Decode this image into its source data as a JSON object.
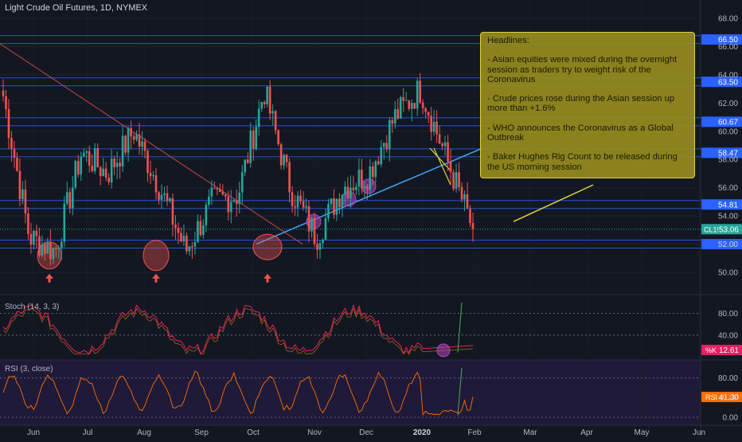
{
  "chart_title": "Light Crude Oil Futures, 1D, NYMEX",
  "price_axis": {
    "ticks": [
      "68.00",
      "66.00",
      "64.00",
      "62.00",
      "60.00",
      "58.00",
      "56.00",
      "54.00",
      "52.00",
      "50.00"
    ],
    "level_tags": [
      {
        "label": "66.50",
        "color": "#2962ff"
      },
      {
        "label": "63.50",
        "color": "#2962ff"
      },
      {
        "label": "60.67",
        "color": "#2962ff"
      },
      {
        "label": "58.47",
        "color": "#2962ff"
      },
      {
        "label": "54.81",
        "color": "#2962ff"
      },
      {
        "label": "52.00",
        "color": "#2962ff"
      }
    ],
    "current_tag": {
      "symbol": "CL1!",
      "price": "53.06",
      "color": "#26a69a"
    }
  },
  "x_axis_labels": [
    "Jun",
    "Jul",
    "Aug",
    "Sep",
    "Oct",
    "Nov",
    "Dec",
    "2020",
    "Feb",
    "Mar",
    "Apr",
    "May",
    "Jun"
  ],
  "headlines": {
    "title": "Headlines:",
    "items": [
      "- Asian equities were mixed during the overnight session as traders try to weight risk of the Coronavirus",
      "- Crude prices rose during the Asian session up more than +1.6%",
      "- WHO announces the Coronavirus as a Global Outbreak",
      "- Baker Hughes Rig Count to be released during the US morning session"
    ]
  },
  "stoch": {
    "label": "Stoch (14, 3, 3)",
    "ticks": [
      "80.00",
      "40.00"
    ],
    "k_tag": {
      "label": "%K",
      "value": "12.61",
      "color": "#e91e63"
    }
  },
  "rsi": {
    "label": "RSI (3, close)",
    "ticks": [
      "80.00",
      "40.00",
      "0.00"
    ],
    "tag": {
      "label": "RSI",
      "value": "41.30",
      "color": "#ff6d00"
    }
  },
  "colors": {
    "up": "#26a69a",
    "down": "#ef5350",
    "level": "#2962ff",
    "trend": "#42a5f5",
    "note": "#e0d43a"
  },
  "chart_data": {
    "type": "candlestick",
    "title": "Light Crude Oil Futures, 1D, NYMEX",
    "y_range": [
      49,
      69
    ],
    "horizontal_levels": [
      66.5,
      63.5,
      60.67,
      58.47,
      54.81,
      52.0
    ],
    "last_price": 53.06,
    "close_path": [
      {
        "month": "May 2019 end",
        "close": 62.5
      },
      {
        "month": "early Jun",
        "close": 52.5
      },
      {
        "month": "mid Jun",
        "close": 51.5
      },
      {
        "month": "late Jun",
        "close": 58.5
      },
      {
        "month": "early Jul",
        "close": 57.0
      },
      {
        "month": "mid Jul",
        "close": 60.0
      },
      {
        "month": "late Jul",
        "close": 56.0
      },
      {
        "month": "early Aug",
        "close": 51.5
      },
      {
        "month": "mid Aug",
        "close": 55.0
      },
      {
        "month": "late Aug",
        "close": 55.5
      },
      {
        "month": "mid Sep",
        "close": 62.9
      },
      {
        "month": "late Sep",
        "close": 56.0
      },
      {
        "month": "early Oct",
        "close": 52.5
      },
      {
        "month": "late Oct",
        "close": 56.0
      },
      {
        "month": "Nov",
        "close": 57.0
      },
      {
        "month": "Dec",
        "close": 61.0
      },
      {
        "month": "early Jan 2020",
        "close": 63.0
      },
      {
        "month": "mid Jan",
        "close": 58.0
      },
      {
        "month": "late Jan",
        "close": 53.06
      }
    ]
  }
}
